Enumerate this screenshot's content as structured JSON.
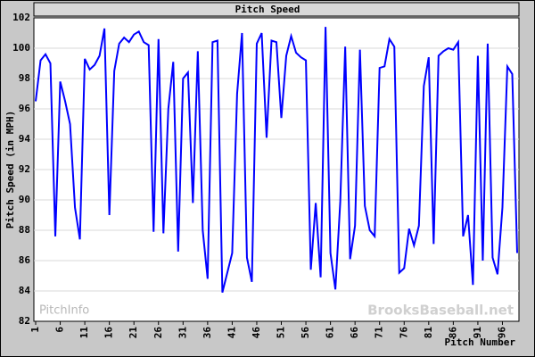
{
  "chart_data": {
    "type": "line",
    "title": "Pitch Speed",
    "x_label": "Pitch Number",
    "y_label": "Pitch Speed (in MPH)",
    "watermark_left": "PitchInfo",
    "watermark_right": "BrooksBaseball.net",
    "color": "#0000ff",
    "grid": true,
    "x": [
      1,
      2,
      3,
      4,
      5,
      6,
      7,
      8,
      9,
      10,
      11,
      12,
      13,
      14,
      15,
      16,
      17,
      18,
      19,
      20,
      21,
      22,
      23,
      24,
      25,
      26,
      27,
      28,
      29,
      30,
      31,
      32,
      33,
      34,
      35,
      36,
      37,
      38,
      39,
      40,
      41,
      42,
      43,
      44,
      45,
      46,
      47,
      48,
      49,
      50,
      51,
      52,
      53,
      54,
      55,
      56,
      57,
      58,
      59,
      60,
      61,
      62,
      63,
      64,
      65,
      66,
      67,
      68,
      69,
      70,
      71,
      72,
      73,
      74,
      75,
      76,
      77,
      78,
      79,
      80,
      81,
      82,
      83,
      84,
      85,
      86,
      87,
      88,
      89,
      90,
      91,
      92,
      93,
      94,
      95,
      96,
      97,
      98,
      99
    ],
    "values": [
      96.5,
      99.2,
      99.6,
      99.0,
      87.6,
      97.8,
      96.5,
      95.0,
      89.5,
      87.4,
      99.3,
      98.6,
      98.9,
      99.5,
      101.3,
      89.0,
      98.5,
      100.3,
      100.7,
      100.4,
      100.9,
      101.1,
      100.4,
      100.2,
      87.9,
      100.6,
      87.8,
      96.0,
      99.1,
      86.6,
      98.0,
      98.4,
      89.8,
      99.8,
      88.0,
      84.8,
      100.4,
      100.5,
      83.9,
      85.2,
      86.5,
      97.0,
      101.0,
      86.2,
      84.6,
      100.3,
      101.0,
      94.1,
      100.5,
      100.4,
      95.4,
      99.5,
      100.8,
      99.7,
      99.4,
      99.2,
      85.4,
      89.8,
      84.9,
      101.4,
      86.5,
      84.1,
      89.9,
      100.1,
      86.1,
      88.3,
      99.9,
      89.6,
      88.0,
      87.6,
      98.7,
      98.8,
      100.6,
      100.1,
      85.2,
      85.5,
      88.1,
      87.0,
      88.3,
      97.5,
      99.4,
      87.1,
      99.5,
      99.8,
      100.0,
      99.9,
      100.4,
      87.6,
      89.0,
      84.4,
      99.5,
      86.0,
      100.3,
      86.2,
      85.1,
      89.5,
      98.8,
      98.3,
      86.5
    ],
    "xlim": [
      1,
      99
    ],
    "xticks": [
      1,
      6,
      11,
      16,
      21,
      26,
      31,
      36,
      41,
      46,
      51,
      56,
      61,
      66,
      71,
      76,
      81,
      86,
      91,
      96
    ],
    "ylim": [
      82,
      102
    ],
    "yticks": [
      82,
      84,
      86,
      88,
      90,
      92,
      94,
      96,
      98,
      100,
      102
    ]
  }
}
